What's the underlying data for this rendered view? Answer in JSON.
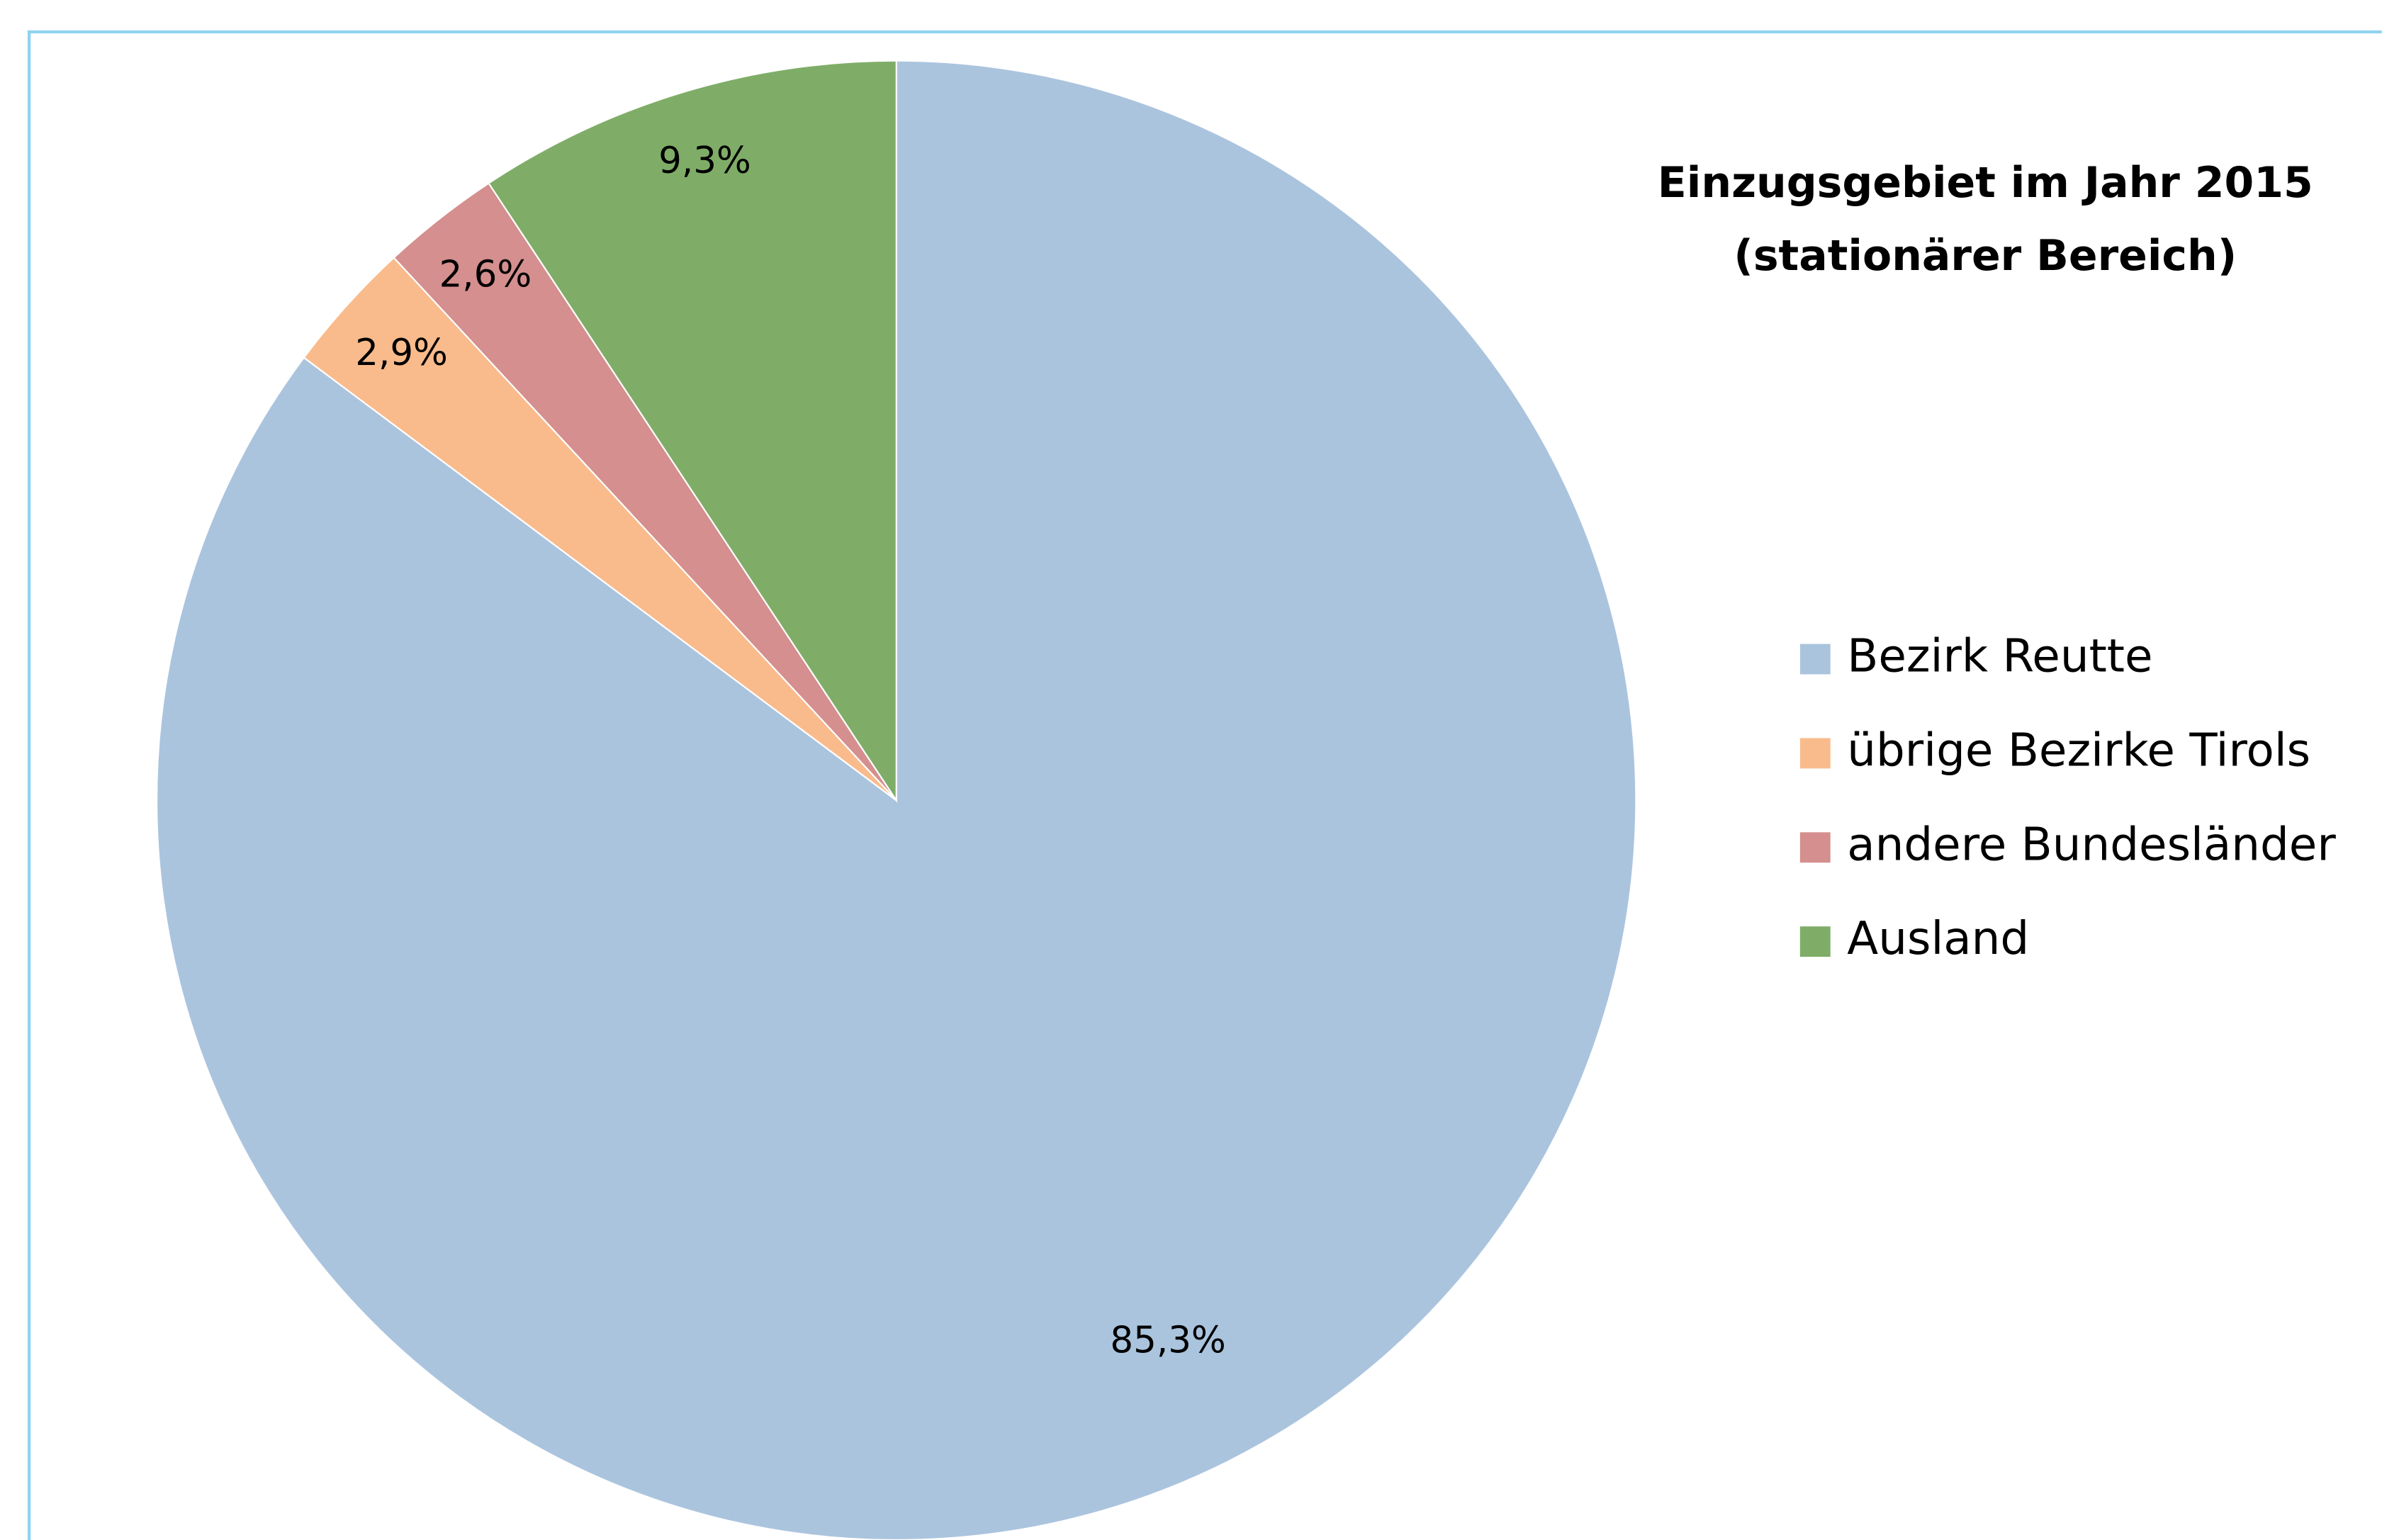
{
  "chart_data": {
    "type": "pie",
    "title": [
      "Einzugsgebiet im Jahr 2015",
      "(stationärer Bereich)"
    ],
    "categories": [
      "Bezirk Reutte",
      "übrige Bezirke Tirols",
      "andere Bundesländer",
      "Ausland"
    ],
    "values": [
      85.3,
      2.9,
      2.6,
      9.3
    ],
    "value_labels": [
      "85,3%",
      "2,9%",
      "2,6%",
      "9,3%"
    ],
    "colors": [
      "#abc4de",
      "#f9bb8c",
      "#d48f8e",
      "#7fad68"
    ],
    "legend": "right"
  }
}
